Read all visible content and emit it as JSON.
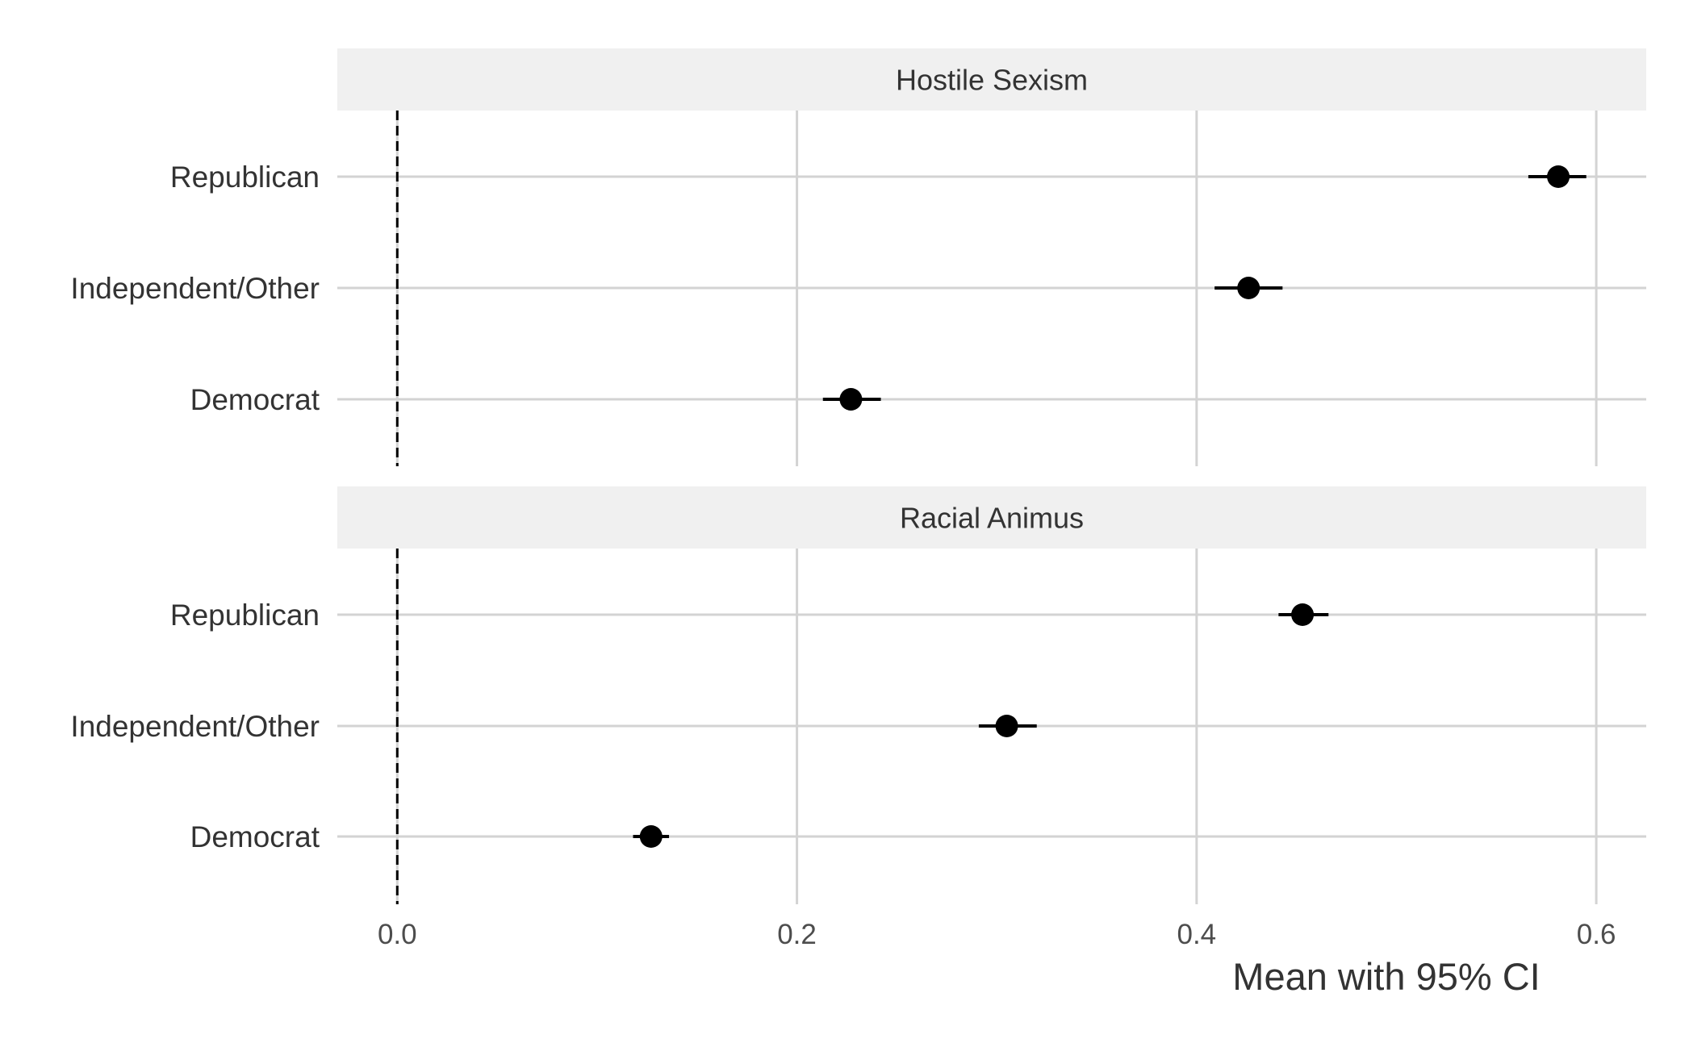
{
  "chart_data": {
    "type": "scatter",
    "facets": [
      {
        "title": "Hostile Sexism",
        "categories": [
          "Republican",
          "Independent/Other",
          "Democrat"
        ],
        "mean": [
          0.581,
          0.426,
          0.227
        ],
        "ci_low": [
          0.566,
          0.409,
          0.213
        ],
        "ci_high": [
          0.595,
          0.443,
          0.242
        ]
      },
      {
        "title": "Racial Animus",
        "categories": [
          "Republican",
          "Independent/Other",
          "Democrat"
        ],
        "mean": [
          0.453,
          0.305,
          0.127
        ],
        "ci_low": [
          0.441,
          0.291,
          0.118
        ],
        "ci_high": [
          0.466,
          0.32,
          0.136
        ]
      }
    ],
    "x_ticks": [
      0.0,
      0.2,
      0.4,
      0.6
    ],
    "x_tick_labels": [
      "0.0",
      "0.2",
      "0.4",
      "0.6"
    ],
    "xlabel": "Mean with 95% CI",
    "xlim": [
      -0.03,
      0.625
    ],
    "reference_line": 0,
    "reference_line_style": "dashed",
    "grid": true,
    "colors": {
      "point": "#000000",
      "grid": "#d3d3d3",
      "strip": "#f0f0f0",
      "text": "#333333"
    }
  }
}
